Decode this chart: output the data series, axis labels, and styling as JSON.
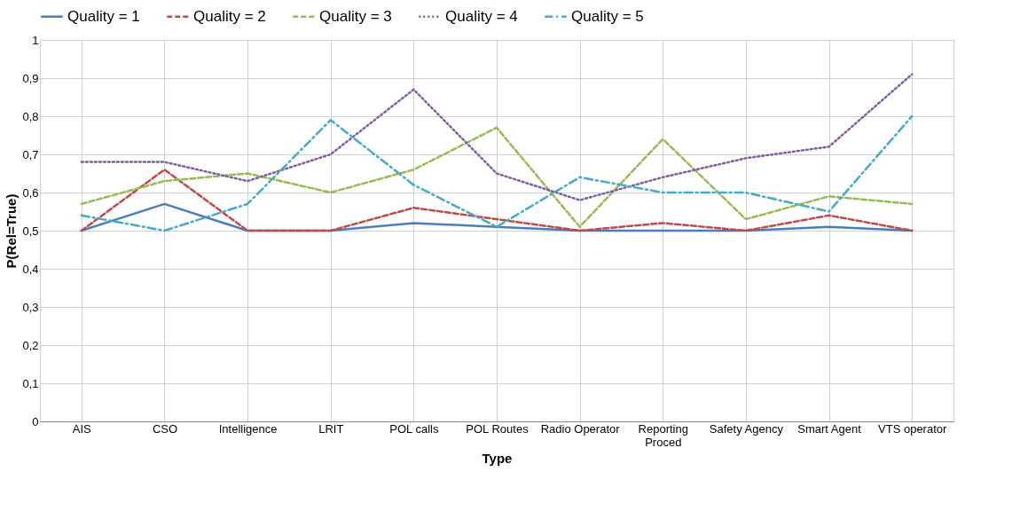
{
  "chart_data": {
    "type": "line",
    "xlabel": "Type",
    "ylabel": "P(Rel=True)",
    "categories": [
      "AIS",
      "CSO",
      "Intelligence",
      "LRIT",
      "POL calls",
      "POL Routes",
      "Radio Operator",
      "Reporting Proced",
      "Safety Agency",
      "Smart Agent",
      "VTS operator"
    ],
    "series": [
      {
        "name": "Quality = 1",
        "color": "#4a7ebb",
        "line_style": "solid",
        "values": [
          0.5,
          0.57,
          0.5,
          0.5,
          0.52,
          0.51,
          0.5,
          0.5,
          0.5,
          0.51,
          0.5
        ]
      },
      {
        "name": "Quality = 2",
        "color": "#be4b48",
        "line_style": "dashed",
        "values": [
          0.5,
          0.66,
          0.5,
          0.5,
          0.56,
          0.53,
          0.5,
          0.52,
          0.5,
          0.54,
          0.5
        ]
      },
      {
        "name": "Quality = 3",
        "color": "#98b954",
        "line_style": "dashed",
        "values": [
          0.57,
          0.63,
          0.65,
          0.6,
          0.66,
          0.77,
          0.51,
          0.74,
          0.53,
          0.59,
          0.57
        ]
      },
      {
        "name": "Quality = 4",
        "color": "#7d60a0",
        "line_style": "dotted",
        "values": [
          0.68,
          0.68,
          0.63,
          0.7,
          0.87,
          0.65,
          0.58,
          0.64,
          0.69,
          0.72,
          0.91
        ]
      },
      {
        "name": "Quality = 5",
        "color": "#46aac5",
        "line_style": "dashdot",
        "values": [
          0.54,
          0.5,
          0.57,
          0.79,
          0.62,
          0.51,
          0.64,
          0.6,
          0.6,
          0.55,
          0.8
        ]
      }
    ],
    "ylim": [
      0,
      1
    ],
    "yticks": [
      0,
      {
        "value": 0.1,
        "label": "0,1"
      },
      {
        "value": 0.2,
        "label": "0,2"
      },
      {
        "value": 0.3,
        "label": "0,3"
      },
      {
        "value": 0.4,
        "label": "0,4"
      },
      {
        "value": 0.5,
        "label": "0,5"
      },
      {
        "value": 0.6,
        "label": "0,6"
      },
      {
        "value": 0.7,
        "label": "0,7"
      },
      {
        "value": 0.8,
        "label": "0,8"
      },
      {
        "value": 0.9,
        "label": "0,9"
      },
      1
    ],
    "grid": true,
    "legend": "top",
    "marker": "none"
  }
}
